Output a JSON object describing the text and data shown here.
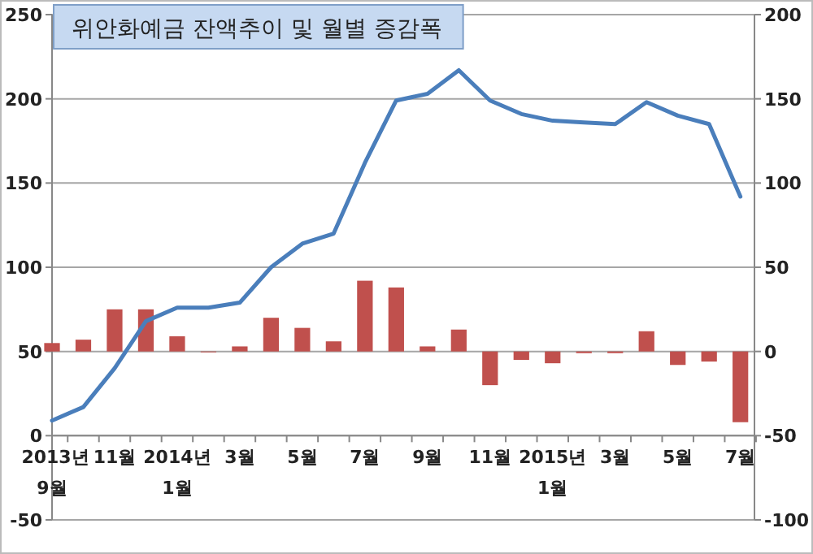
{
  "chart_data": {
    "type": "bar",
    "title": "위안화예금 잔액추이 및 월별 증감폭",
    "categories": [
      "2013년 9월",
      null,
      "11월",
      null,
      "2014년 1월",
      null,
      "3월",
      null,
      "5월",
      null,
      "7월",
      null,
      "9월",
      null,
      "11월",
      null,
      "2015년 1월",
      null,
      "3월",
      null,
      "5월",
      null,
      "7월"
    ],
    "series": [
      {
        "color": "#c0504d",
        "axis": "y2",
        "values": [
          5,
          7,
          25,
          25,
          9,
          0,
          3,
          20,
          14,
          6,
          42,
          38,
          3,
          13,
          -20,
          -5,
          -7,
          -1,
          -1,
          12,
          -8,
          -6,
          -42
        ]
      },
      {
        "type": "line",
        "color": "#4a7ebb",
        "axis": "y",
        "values": [
          9,
          17,
          40,
          68,
          76,
          76,
          79,
          100,
          114,
          120,
          162,
          199,
          203,
          217,
          199,
          191,
          187,
          186,
          185,
          198,
          190,
          185,
          142
        ]
      }
    ],
    "ylim": [
      -50,
      250
    ],
    "yticks": [
      -50,
      0,
      50,
      100,
      150,
      200,
      250
    ],
    "y2lim": [
      -100,
      200
    ],
    "y2ticks": [
      -100,
      -50,
      0,
      50,
      100,
      150,
      200
    ],
    "grid": "y"
  }
}
